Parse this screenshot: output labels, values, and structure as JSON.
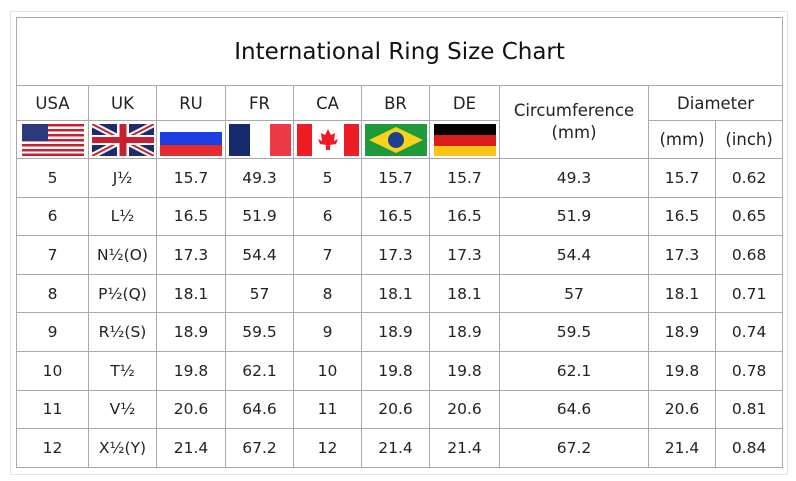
{
  "title": "International Ring Size Chart",
  "headers": {
    "usa": "USA",
    "uk": "UK",
    "ru": "RU",
    "fr": "FR",
    "ca": "CA",
    "br": "BR",
    "de": "DE",
    "circumference": "Circumference",
    "circumference_unit": "(mm)",
    "diameter": "Diameter",
    "diameter_mm": "(mm)",
    "diameter_inch": "(inch)"
  },
  "flags": [
    "usa-flag-icon",
    "uk-flag-icon",
    "russia-flag-icon",
    "france-flag-icon",
    "canada-flag-icon",
    "brazil-flag-icon",
    "germany-flag-icon"
  ],
  "rows": [
    [
      "5",
      "J½",
      "15.7",
      "49.3",
      "5",
      "15.7",
      "15.7",
      "49.3",
      "15.7",
      "0.62"
    ],
    [
      "6",
      "L½",
      "16.5",
      "51.9",
      "6",
      "16.5",
      "16.5",
      "51.9",
      "16.5",
      "0.65"
    ],
    [
      "7",
      "N½(O)",
      "17.3",
      "54.4",
      "7",
      "17.3",
      "17.3",
      "54.4",
      "17.3",
      "0.68"
    ],
    [
      "8",
      "P½(Q)",
      "18.1",
      "57",
      "8",
      "18.1",
      "18.1",
      "57",
      "18.1",
      "0.71"
    ],
    [
      "9",
      "R½(S)",
      "18.9",
      "59.5",
      "9",
      "18.9",
      "18.9",
      "59.5",
      "18.9",
      "0.74"
    ],
    [
      "10",
      "T½",
      "19.8",
      "62.1",
      "10",
      "19.8",
      "19.8",
      "62.1",
      "19.8",
      "0.78"
    ],
    [
      "11",
      "V½",
      "20.6",
      "64.6",
      "11",
      "20.6",
      "20.6",
      "64.6",
      "20.6",
      "0.81"
    ],
    [
      "12",
      "X½(Y)",
      "21.4",
      "67.2",
      "12",
      "21.4",
      "21.4",
      "67.2",
      "21.4",
      "0.84"
    ]
  ]
}
